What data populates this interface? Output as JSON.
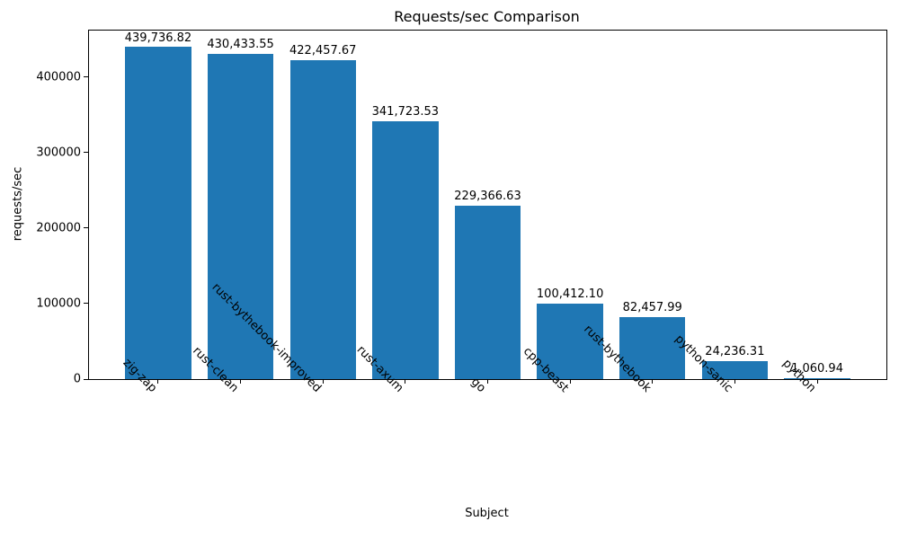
{
  "chart_data": {
    "type": "bar",
    "title": "Requests/sec Comparison",
    "xlabel": "Subject",
    "ylabel": "requests/sec",
    "categories": [
      "zig-zap",
      "rust-clean",
      "rust-bythebook-improved",
      "rust-axum",
      "go",
      "cpp-beast",
      "rust-bythebook",
      "python-sanic",
      "python"
    ],
    "values": [
      439736.82,
      430433.55,
      422457.67,
      341723.53,
      229366.63,
      100412.1,
      82457.99,
      24236.31,
      1060.94
    ],
    "value_labels": [
      "439,736.82",
      "430,433.55",
      "422,457.67",
      "341,723.53",
      "229,366.63",
      "100,412.10",
      "82,457.99",
      "24,236.31",
      "1,060.94"
    ],
    "yticks": [
      0,
      100000,
      200000,
      300000,
      400000
    ],
    "ytick_labels": [
      "0",
      "100000",
      "200000",
      "300000",
      "400000"
    ],
    "ylim": [
      0,
      461723.66
    ],
    "bar_width_fraction": 0.8,
    "x_margin_fraction": 0.05,
    "bar_color": "#1f77b4",
    "axis_color": "#000000",
    "grid": false,
    "legend_position": "none",
    "xtick_rotation_deg": 45
  }
}
